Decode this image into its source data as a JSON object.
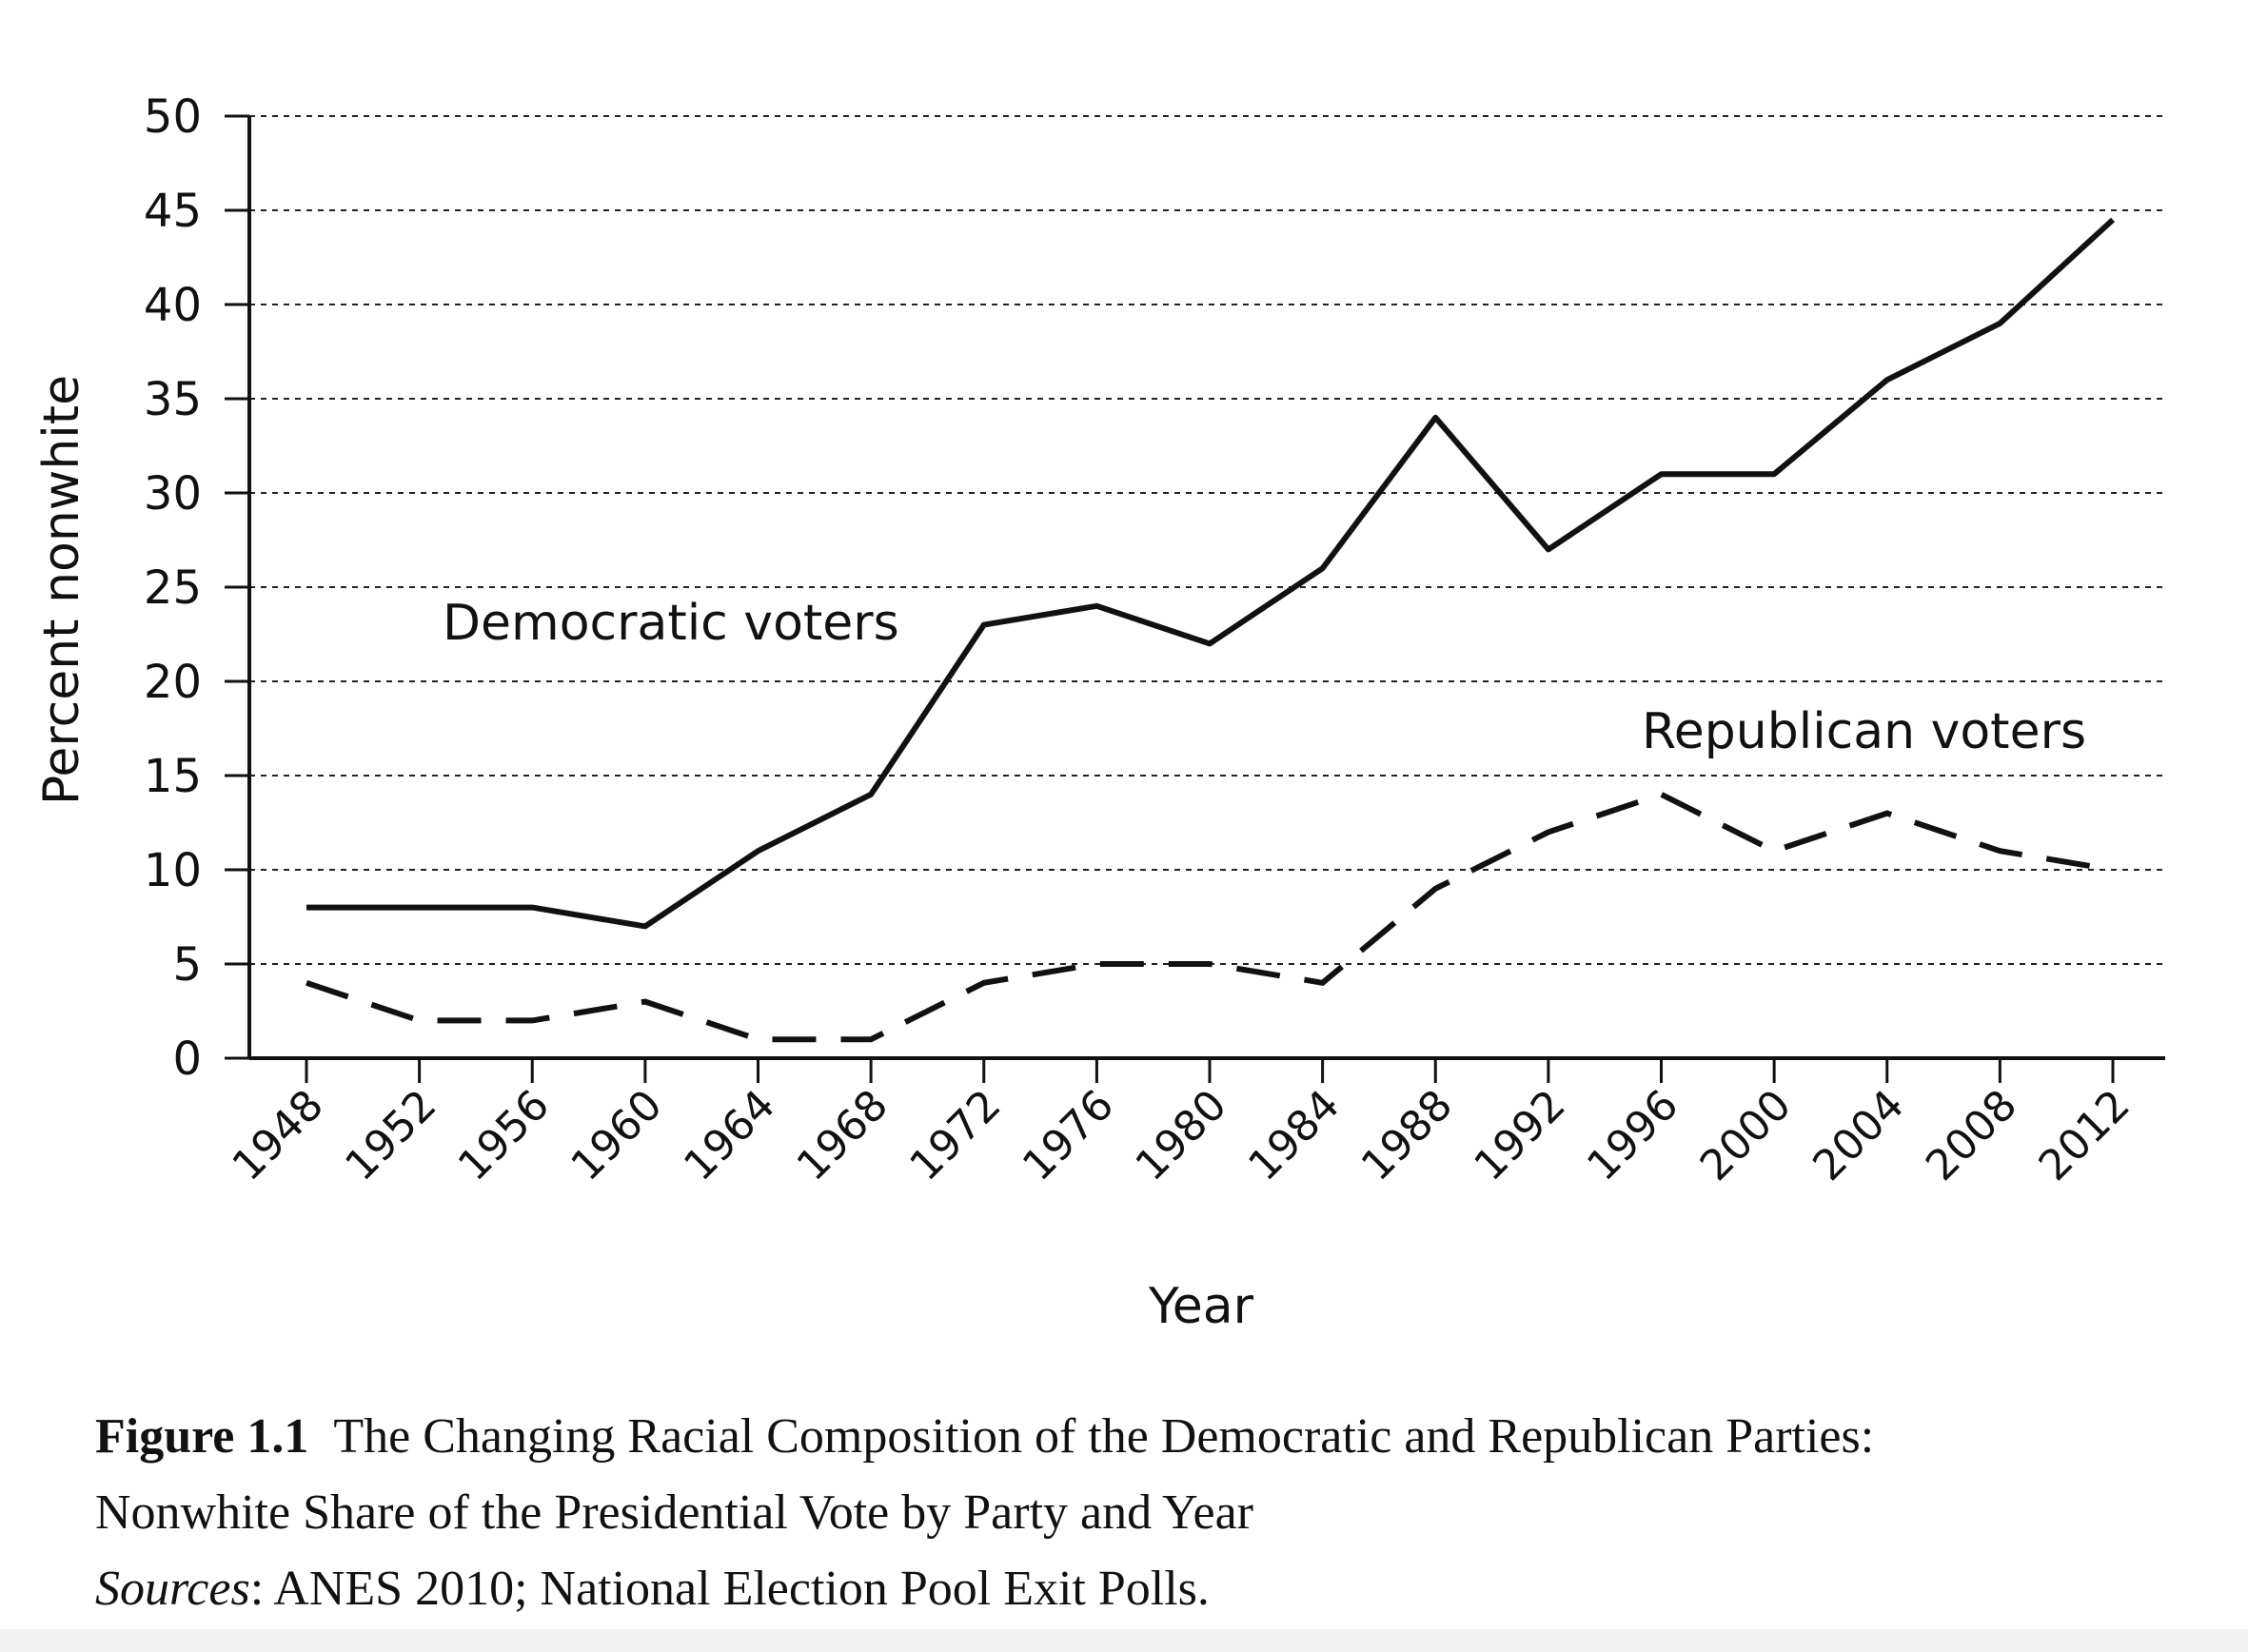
{
  "chart_data": {
    "type": "line",
    "title": "",
    "xlabel": "Year",
    "ylabel": "Percent nonwhite",
    "x": [
      "1948",
      "1952",
      "1956",
      "1960",
      "1964",
      "1968",
      "1972",
      "1976",
      "1980",
      "1984",
      "1988",
      "1992",
      "1996",
      "2000",
      "2004",
      "2008",
      "2012"
    ],
    "ylim": [
      0,
      50
    ],
    "y_ticks": [
      0,
      5,
      10,
      15,
      20,
      25,
      30,
      35,
      40,
      45,
      50
    ],
    "grid": "horizontal dashed",
    "series": [
      {
        "name": "Democratic voters",
        "style": "solid",
        "values": [
          8,
          8,
          8,
          7,
          11,
          14,
          23,
          24,
          22,
          26,
          34,
          27,
          31,
          31,
          36,
          39,
          44.5
        ]
      },
      {
        "name": "Republican voters",
        "style": "dashed",
        "values": [
          4,
          2,
          2,
          3,
          1,
          1,
          4,
          5,
          5,
          4,
          9,
          12,
          14,
          11,
          13,
          11,
          10
        ]
      }
    ]
  },
  "caption": {
    "figure_label": "Figure 1.1",
    "title_line1": "The Changing Racial Composition of the Democratic and Republican Parties:",
    "title_line2": "Nonwhite Share of the Presidential Vote by Party and Year",
    "sources_label": "Sources",
    "sources_text": ": ANES 2010; National Election Pool Exit Polls."
  },
  "colors": {
    "ink": "#111111",
    "grid": "#222222",
    "background": "#ffffff"
  }
}
